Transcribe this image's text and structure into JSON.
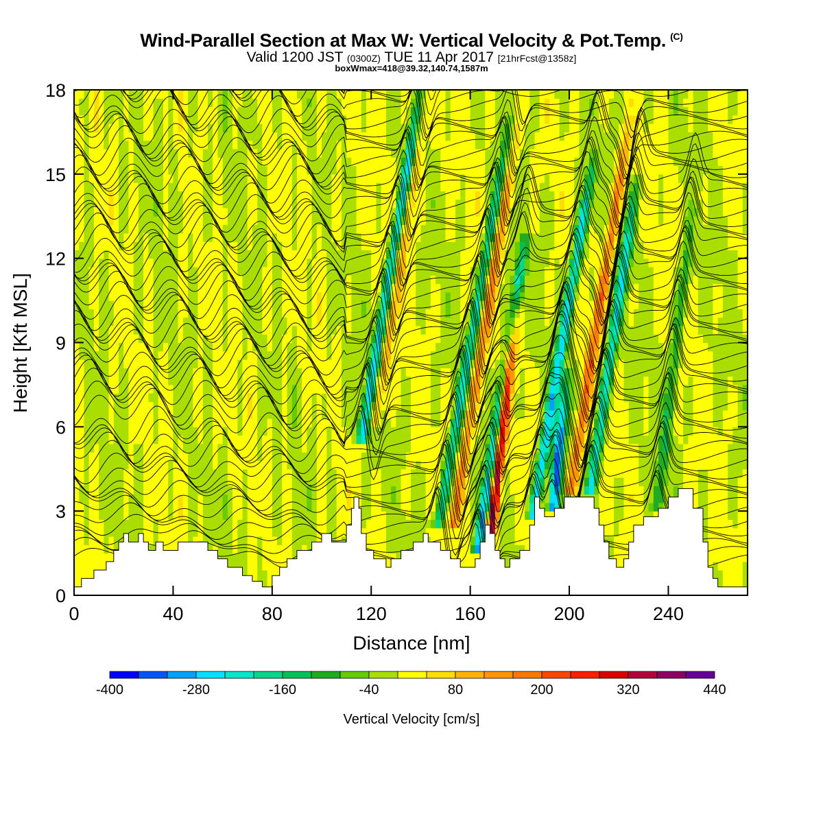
{
  "title": "Wind-Parallel Section at Max W: Vertical Velocity & Pot.Temp.",
  "title_mark": "(C)",
  "subtitle_main": "Valid 1200 JST",
  "subtitle_z": "(0300Z)",
  "subtitle_date": "TUE 11 Apr 2017",
  "subtitle_fcst": "[21hrFcst@1358z]",
  "subtitle2": "boxWmax=418@39.32,140.74,1587m",
  "chart_data": {
    "type": "heatmap",
    "xlabel": "Distance [nm]",
    "ylabel": "Height [Kft MSL]",
    "xlim": [
      0,
      272
    ],
    "ylim": [
      0,
      18
    ],
    "x_ticks": [
      0,
      40,
      80,
      120,
      160,
      200,
      240
    ],
    "y_ticks": [
      0,
      3,
      6,
      9,
      12,
      15,
      18
    ],
    "colorbar": {
      "label": "Vertical Velocity [cm/s]",
      "tick_labels": [
        "-400",
        "-280",
        "-160",
        "-40",
        "80",
        "200",
        "320",
        "440"
      ],
      "tick_values": [
        -400,
        -280,
        -160,
        -40,
        80,
        200,
        320,
        440
      ],
      "bins": [
        -400,
        -360,
        -320,
        -280,
        -240,
        -200,
        -160,
        -120,
        -80,
        -40,
        0,
        40,
        80,
        120,
        160,
        200,
        240,
        280,
        320,
        360,
        400,
        440
      ],
      "colors": [
        "#0000ff",
        "#0055ff",
        "#00a0ff",
        "#00e0ff",
        "#00e6c8",
        "#00d78c",
        "#00c05a",
        "#22aa22",
        "#66cc00",
        "#aadd00",
        "#ffff00",
        "#ffdd00",
        "#ffb400",
        "#ff9600",
        "#ff7800",
        "#ff4600",
        "#ff1e00",
        "#dd0000",
        "#b4003c",
        "#8c0064",
        "#640096"
      ]
    },
    "terrain_kft": [
      [
        0,
        0.3
      ],
      [
        3,
        0.3
      ],
      [
        3,
        0.6
      ],
      [
        8,
        0.6
      ],
      [
        8,
        0.9
      ],
      [
        13,
        0.9
      ],
      [
        13,
        1.2
      ],
      [
        16,
        1.2
      ],
      [
        16,
        1.6
      ],
      [
        18,
        1.6
      ],
      [
        18,
        1.9
      ],
      [
        20,
        1.9
      ],
      [
        20,
        2.2
      ],
      [
        22,
        2.2
      ],
      [
        22,
        1.9
      ],
      [
        26,
        1.9
      ],
      [
        26,
        2.2
      ],
      [
        28,
        2.2
      ],
      [
        28,
        1.9
      ],
      [
        30,
        1.9
      ],
      [
        30,
        1.6
      ],
      [
        33,
        1.6
      ],
      [
        33,
        1.9
      ],
      [
        36,
        1.9
      ],
      [
        36,
        1.6
      ],
      [
        42,
        1.6
      ],
      [
        42,
        1.9
      ],
      [
        54,
        1.9
      ],
      [
        54,
        1.6
      ],
      [
        58,
        1.6
      ],
      [
        58,
        1.3
      ],
      [
        62,
        1.3
      ],
      [
        62,
        1.0
      ],
      [
        68,
        1.0
      ],
      [
        68,
        0.7
      ],
      [
        72,
        0.7
      ],
      [
        72,
        0.5
      ],
      [
        76,
        0.5
      ],
      [
        76,
        0.3
      ],
      [
        80,
        0.3
      ],
      [
        80,
        0.7
      ],
      [
        83,
        0.7
      ],
      [
        83,
        1.0
      ],
      [
        86,
        1.0
      ],
      [
        86,
        1.3
      ],
      [
        90,
        1.3
      ],
      [
        90,
        1.6
      ],
      [
        96,
        1.6
      ],
      [
        96,
        1.9
      ],
      [
        100,
        1.9
      ],
      [
        100,
        2.2
      ],
      [
        104,
        2.2
      ],
      [
        104,
        1.9
      ],
      [
        110,
        1.9
      ],
      [
        110,
        2.5
      ],
      [
        112,
        2.5
      ],
      [
        112,
        3.1
      ],
      [
        113,
        3.1
      ],
      [
        113,
        3.5
      ],
      [
        115,
        3.5
      ],
      [
        115,
        3.1
      ],
      [
        116,
        3.1
      ],
      [
        116,
        2.2
      ],
      [
        118,
        2.2
      ],
      [
        118,
        1.6
      ],
      [
        121,
        1.6
      ],
      [
        121,
        1.3
      ],
      [
        126,
        1.3
      ],
      [
        126,
        1.0
      ],
      [
        128,
        1.0
      ],
      [
        128,
        1.3
      ],
      [
        132,
        1.3
      ],
      [
        132,
        1.6
      ],
      [
        137,
        1.6
      ],
      [
        137,
        1.9
      ],
      [
        141,
        1.9
      ],
      [
        141,
        2.2
      ],
      [
        143,
        2.2
      ],
      [
        143,
        1.9
      ],
      [
        148,
        1.9
      ],
      [
        148,
        1.6
      ],
      [
        152,
        1.6
      ],
      [
        152,
        1.3
      ],
      [
        156,
        1.3
      ],
      [
        156,
        1.0
      ],
      [
        162,
        1.0
      ],
      [
        162,
        1.3
      ],
      [
        164,
        1.3
      ],
      [
        164,
        1.9
      ],
      [
        166,
        1.9
      ],
      [
        166,
        2.5
      ],
      [
        168,
        2.5
      ],
      [
        168,
        2.2
      ],
      [
        170,
        2.2
      ],
      [
        170,
        1.6
      ],
      [
        172,
        1.6
      ],
      [
        172,
        1.3
      ],
      [
        174,
        1.3
      ],
      [
        174,
        1.0
      ],
      [
        176,
        1.0
      ],
      [
        176,
        1.3
      ],
      [
        180,
        1.3
      ],
      [
        180,
        1.6
      ],
      [
        184,
        1.6
      ],
      [
        184,
        2.5
      ],
      [
        186,
        2.5
      ],
      [
        186,
        3.5
      ],
      [
        188,
        3.5
      ],
      [
        188,
        3.1
      ],
      [
        190,
        3.1
      ],
      [
        190,
        2.8
      ],
      [
        194,
        2.8
      ],
      [
        194,
        3.1
      ],
      [
        198,
        3.1
      ],
      [
        198,
        3.5
      ],
      [
        210,
        3.5
      ],
      [
        210,
        3.1
      ],
      [
        212,
        3.1
      ],
      [
        212,
        2.5
      ],
      [
        214,
        2.5
      ],
      [
        214,
        1.9
      ],
      [
        216,
        1.9
      ],
      [
        216,
        1.3
      ],
      [
        219,
        1.3
      ],
      [
        219,
        1.0
      ],
      [
        222,
        1.0
      ],
      [
        222,
        1.3
      ],
      [
        224,
        1.3
      ],
      [
        224,
        1.9
      ],
      [
        226,
        1.9
      ],
      [
        226,
        2.5
      ],
      [
        230,
        2.5
      ],
      [
        230,
        2.8
      ],
      [
        236,
        2.8
      ],
      [
        236,
        3.1
      ],
      [
        240,
        3.1
      ],
      [
        240,
        3.5
      ],
      [
        244,
        3.5
      ],
      [
        244,
        3.8
      ],
      [
        250,
        3.8
      ],
      [
        250,
        3.1
      ],
      [
        254,
        3.1
      ],
      [
        254,
        1.9
      ],
      [
        256,
        1.9
      ],
      [
        256,
        1.0
      ],
      [
        258,
        1.0
      ],
      [
        258,
        0.6
      ],
      [
        260,
        0.6
      ],
      [
        260,
        0.3
      ],
      [
        272,
        0.3
      ],
      [
        272,
        0
      ]
    ]
  }
}
